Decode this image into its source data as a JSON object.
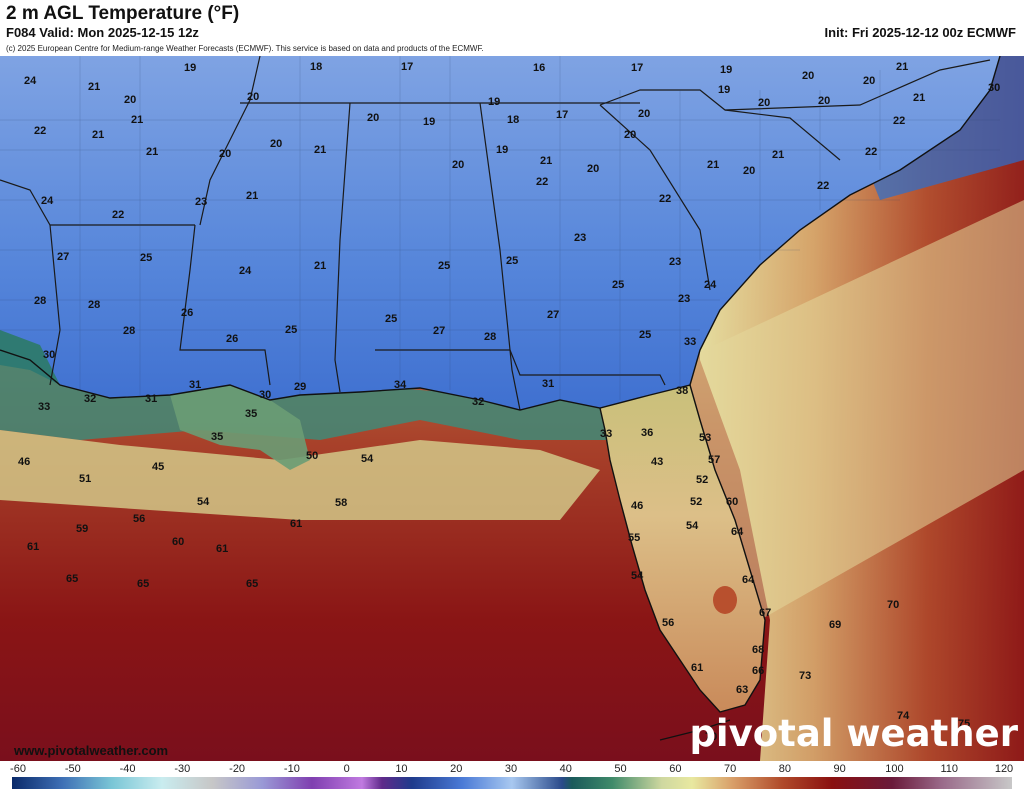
{
  "header": {
    "title": "2 m AGL Temperature (°F)",
    "valid": "F084 Valid: Mon 2025-12-15 12z",
    "init": "Init: Fri 2025-12-12 00z ECMWF",
    "copyright": "(c) 2025 European Centre for Medium-range Weather Forecasts (ECMWF). This service is based on data and products of the ECMWF."
  },
  "footer": {
    "url": "www.pivotalweather.com",
    "brand_left": "pivot",
    "brand_right": "al weather"
  },
  "colorbar": {
    "ticks": [
      "-60",
      "-50",
      "-40",
      "-30",
      "-20",
      "-10",
      "0",
      "10",
      "20",
      "30",
      "40",
      "50",
      "60",
      "70",
      "80",
      "90",
      "100",
      "110",
      "120"
    ]
  },
  "temps": [
    "24",
    "21",
    "20",
    "21",
    "22",
    "21",
    "21",
    "19",
    "18",
    "17",
    "16",
    "17",
    "19",
    "19",
    "20",
    "20",
    "20",
    "21",
    "21",
    "30",
    "20",
    "20",
    "20",
    "19",
    "19",
    "18",
    "17",
    "20",
    "20",
    "19",
    "20",
    "22",
    "20",
    "21",
    "20",
    "21",
    "20",
    "24",
    "22",
    "23",
    "21",
    "20",
    "21",
    "22",
    "21",
    "22",
    "22",
    "22",
    "27",
    "25",
    "24",
    "21",
    "25",
    "25",
    "25",
    "23",
    "23",
    "23",
    "28",
    "28",
    "26",
    "28",
    "26",
    "25",
    "25",
    "27",
    "28",
    "27",
    "25",
    "24",
    "30",
    "31",
    "30",
    "29",
    "31",
    "32",
    "31",
    "34",
    "33",
    "33",
    "32",
    "35",
    "35",
    "38",
    "33",
    "36",
    "53",
    "46",
    "45",
    "51",
    "50",
    "54",
    "43",
    "57",
    "54",
    "52",
    "58",
    "52",
    "60",
    "59",
    "56",
    "60",
    "61",
    "61",
    "54",
    "46",
    "64",
    "61",
    "55",
    "64",
    "65",
    "65",
    "54",
    "70",
    "69",
    "67",
    "56",
    "68",
    "66",
    "73",
    "61",
    "63",
    "74",
    "70",
    "75"
  ]
}
